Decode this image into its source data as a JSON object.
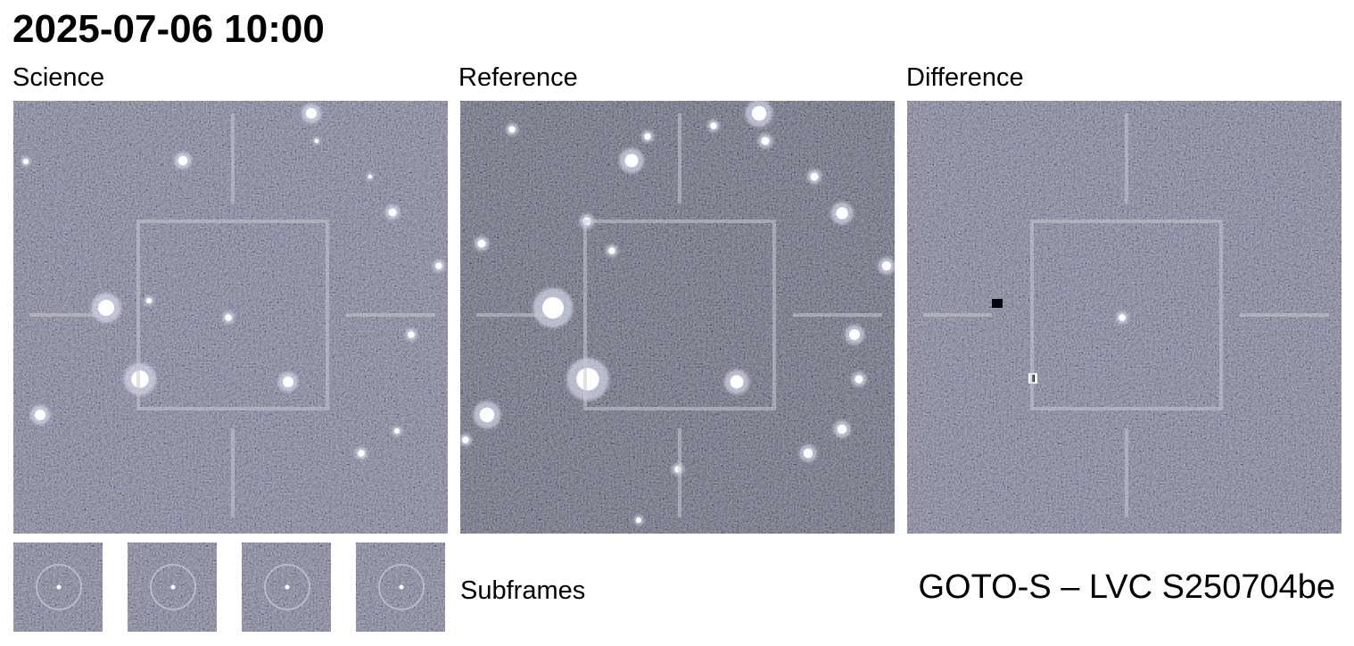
{
  "header": {
    "title": "2025-07-06 10:00"
  },
  "panels": [
    {
      "label": "Science"
    },
    {
      "label": "Reference"
    },
    {
      "label": "Difference"
    }
  ],
  "subframes": {
    "label": "Subframes"
  },
  "footer": {
    "label": "GOTO-S – LVC S250704be"
  }
}
